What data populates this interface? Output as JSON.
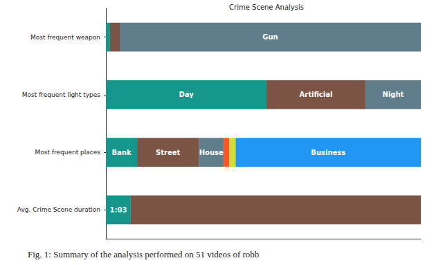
{
  "chart_data": {
    "type": "bar",
    "title": "Crime Scene Analysis",
    "caption": "Fig. 1: Summary of the analysis performed on 51 videos of robb",
    "orientation": "horizontal",
    "stacked": true,
    "tick_labels": "y",
    "grid": false,
    "categories": [
      "Most frequent weapon",
      "Most frequent light types",
      "Most frequent places",
      "Avg. Crime Scene duration"
    ],
    "xlim": [
      0,
      100
    ],
    "series": [
      {
        "color": "#14968a",
        "values": [
          1.3,
          51,
          9.9,
          7.9
        ],
        "labels": [
          null,
          "Day",
          "Bank",
          "1:03"
        ]
      },
      {
        "color": "#7b5446",
        "values": [
          3.1,
          31.4,
          19.6,
          92.1
        ],
        "labels": [
          null,
          "Artificial",
          "Street",
          null
        ]
      },
      {
        "color": "#607d8b",
        "values": [
          95.6,
          17.6,
          7.9,
          null
        ],
        "labels": [
          "Gun",
          "Night",
          "House",
          null
        ]
      },
      {
        "color": "#ff5722",
        "values": [
          null,
          null,
          1.8,
          null
        ],
        "labels": [
          null,
          null,
          null,
          null
        ]
      },
      {
        "color": "#cddc39",
        "values": [
          null,
          null,
          2,
          null
        ],
        "labels": [
          null,
          null,
          null,
          null
        ]
      },
      {
        "color": "#2196f3",
        "values": [
          null,
          null,
          58.8,
          null
        ],
        "labels": [
          null,
          null,
          "Business",
          null
        ]
      }
    ]
  }
}
